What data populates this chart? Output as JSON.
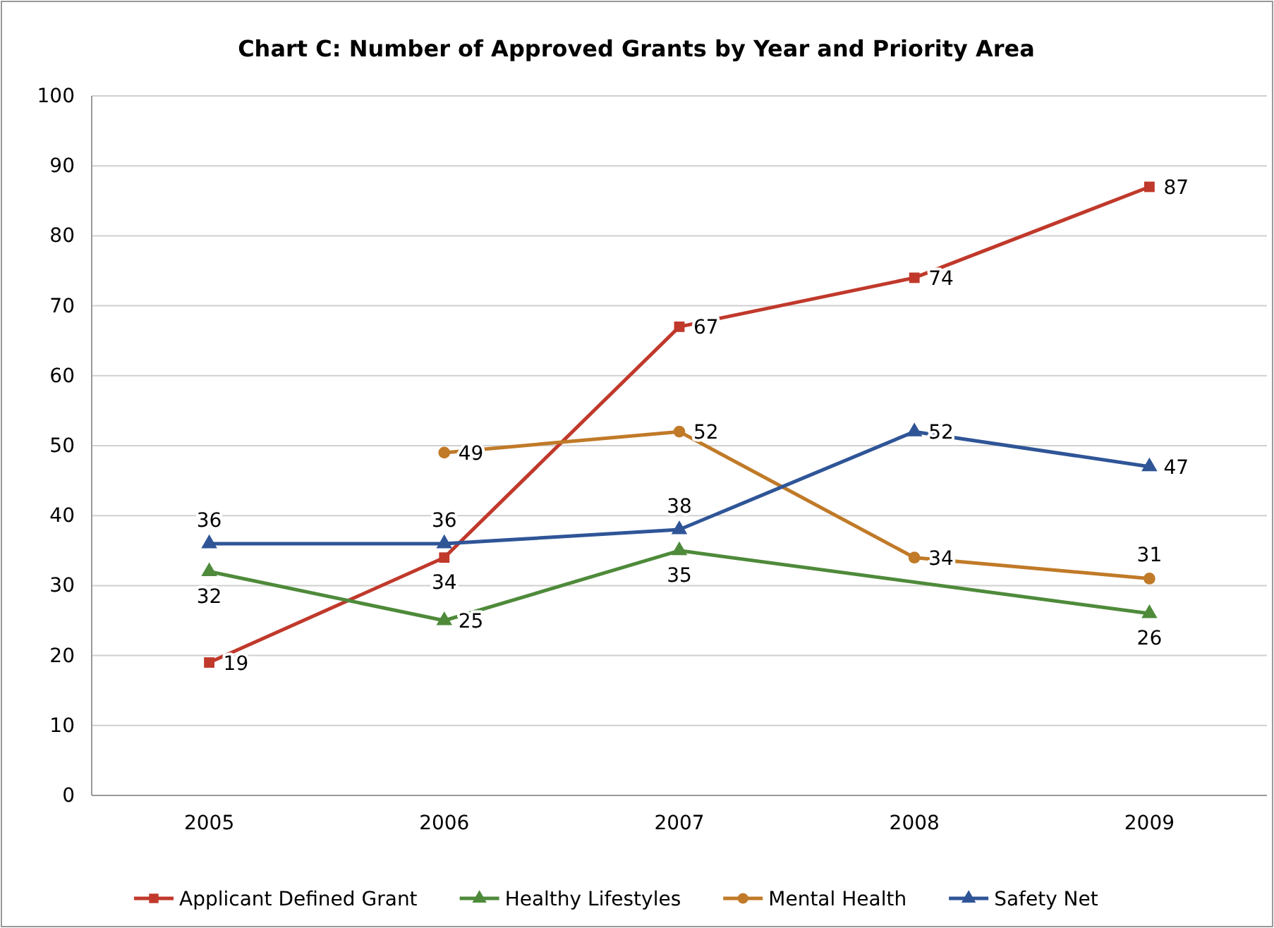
{
  "chart_data": {
    "type": "line",
    "title": "Chart C: Number of Approved Grants by Year and Priority Area",
    "categories": [
      "2005",
      "2006",
      "2007",
      "2008",
      "2009"
    ],
    "series": [
      {
        "name": "Applicant Defined Grant",
        "color": "#c0392b",
        "marker": "square",
        "values": [
          19,
          34,
          67,
          74,
          87
        ]
      },
      {
        "name": "Healthy Lifestyles",
        "color": "#4e8a3a",
        "marker": "triangle",
        "values": [
          32,
          25,
          35,
          null,
          26
        ]
      },
      {
        "name": "Mental Health",
        "color": "#c07a28",
        "marker": "circle",
        "values": [
          null,
          49,
          52,
          34,
          31
        ]
      },
      {
        "name": "Safety Net",
        "color": "#2f5597",
        "marker": "triangle",
        "values": [
          36,
          36,
          38,
          52,
          47
        ]
      }
    ],
    "ylim": [
      0,
      100
    ],
    "yticks": [
      0,
      10,
      20,
      30,
      40,
      50,
      60,
      70,
      80,
      90,
      100
    ],
    "grid": "y",
    "legend": "bottom",
    "data_labels": true
  }
}
